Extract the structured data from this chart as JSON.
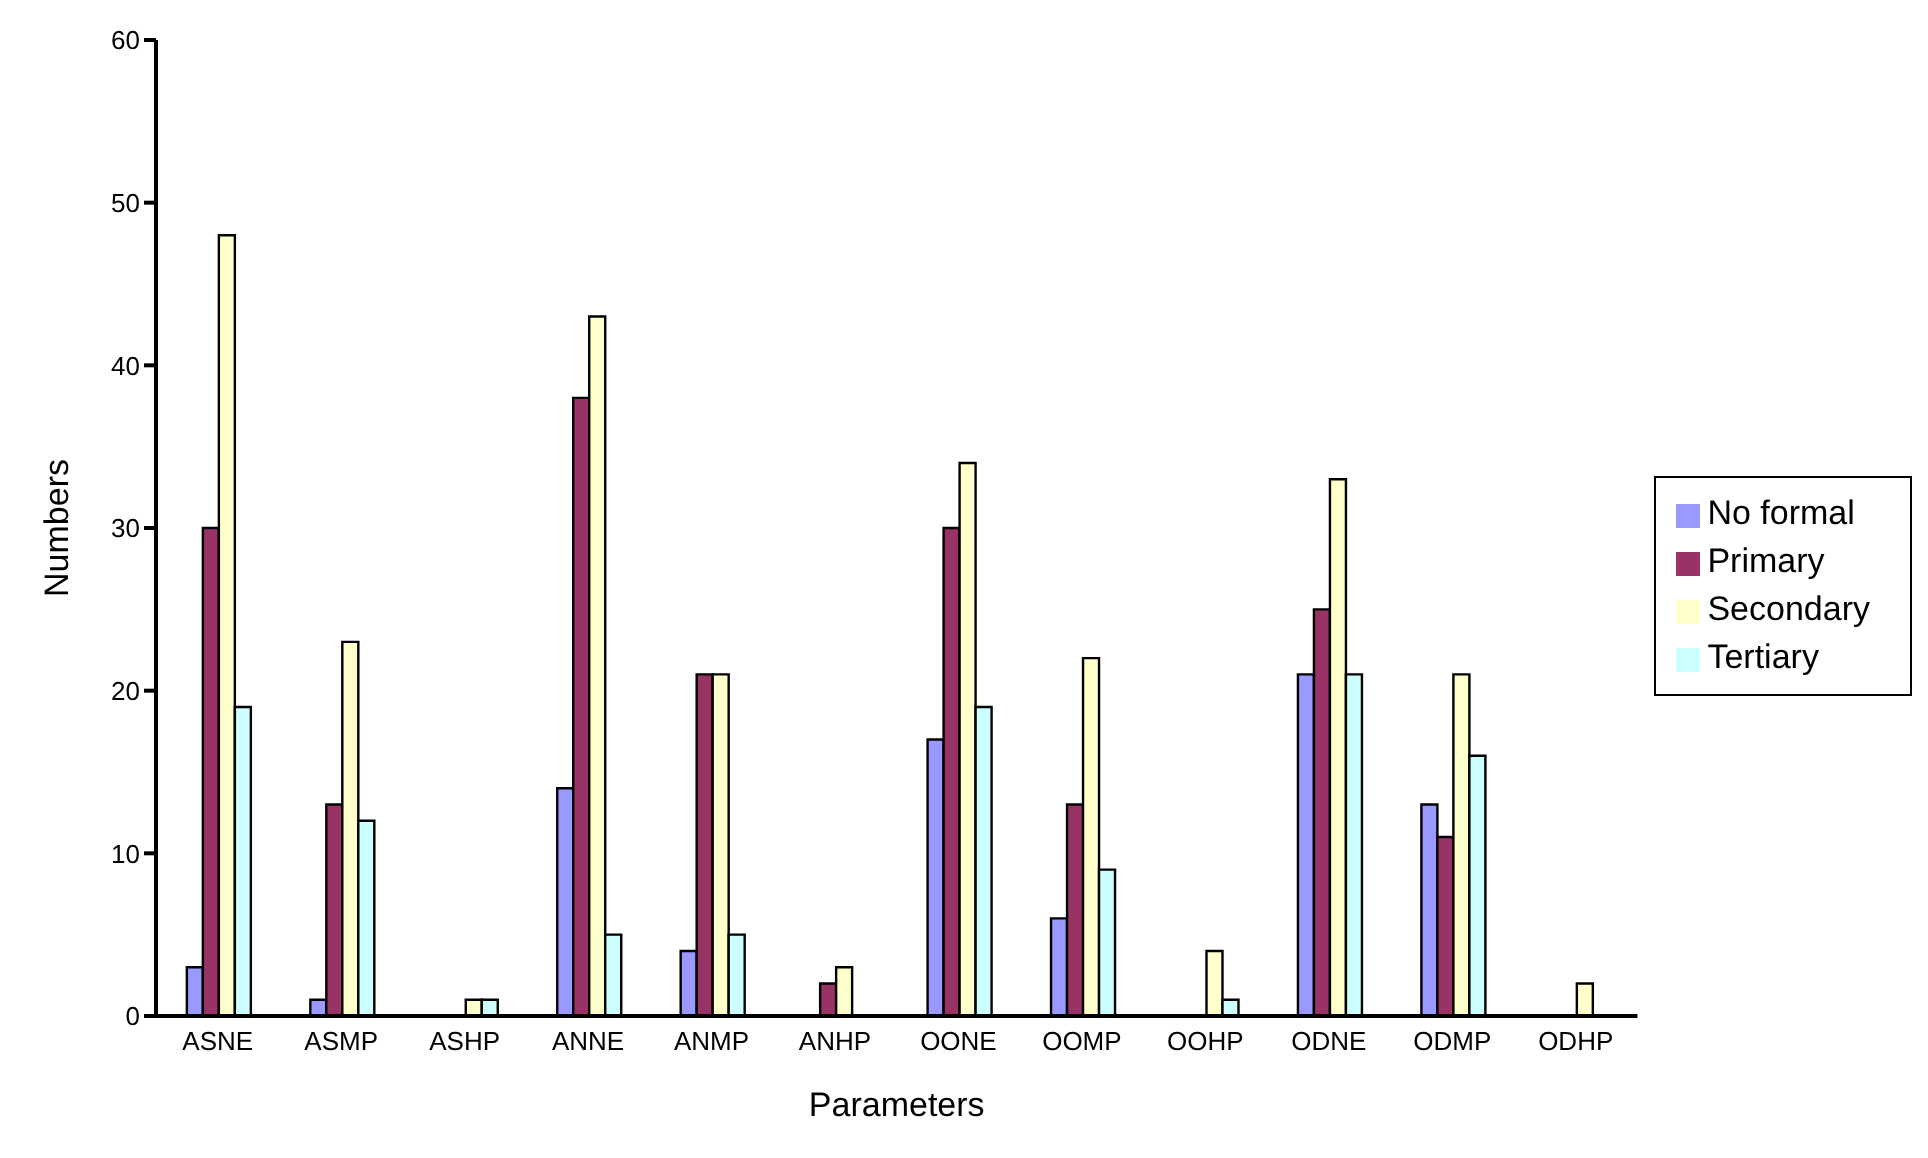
{
  "chart_data": {
    "type": "bar",
    "xlabel": "Parameters",
    "ylabel": "Numbers",
    "categories": [
      "ASNE",
      "ASMP",
      "ASHP",
      "ANNE",
      "ANMP",
      "ANHP",
      "OONE",
      "OOMP",
      "OOHP",
      "ODNE",
      "ODMP",
      "ODHP"
    ],
    "series": [
      {
        "name": "No formal",
        "color": "#9999ff",
        "values": [
          3,
          1,
          0,
          14,
          4,
          0,
          17,
          6,
          0,
          21,
          13,
          0
        ]
      },
      {
        "name": "Primary",
        "color": "#993366",
        "values": [
          30,
          13,
          0,
          38,
          21,
          2,
          30,
          13,
          0,
          25,
          11,
          0
        ]
      },
      {
        "name": "Secondary",
        "color": "#ffffcc",
        "values": [
          48,
          23,
          1,
          43,
          21,
          3,
          34,
          22,
          4,
          33,
          21,
          2
        ]
      },
      {
        "name": "Tertiary",
        "color": "#ccffff",
        "values": [
          19,
          12,
          1,
          5,
          5,
          0,
          19,
          9,
          1,
          21,
          16,
          0
        ]
      }
    ],
    "ylim": [
      0,
      60
    ],
    "yticks": [
      0,
      10,
      20,
      30,
      40,
      50,
      60
    ],
    "grid": false,
    "legend": "right"
  }
}
